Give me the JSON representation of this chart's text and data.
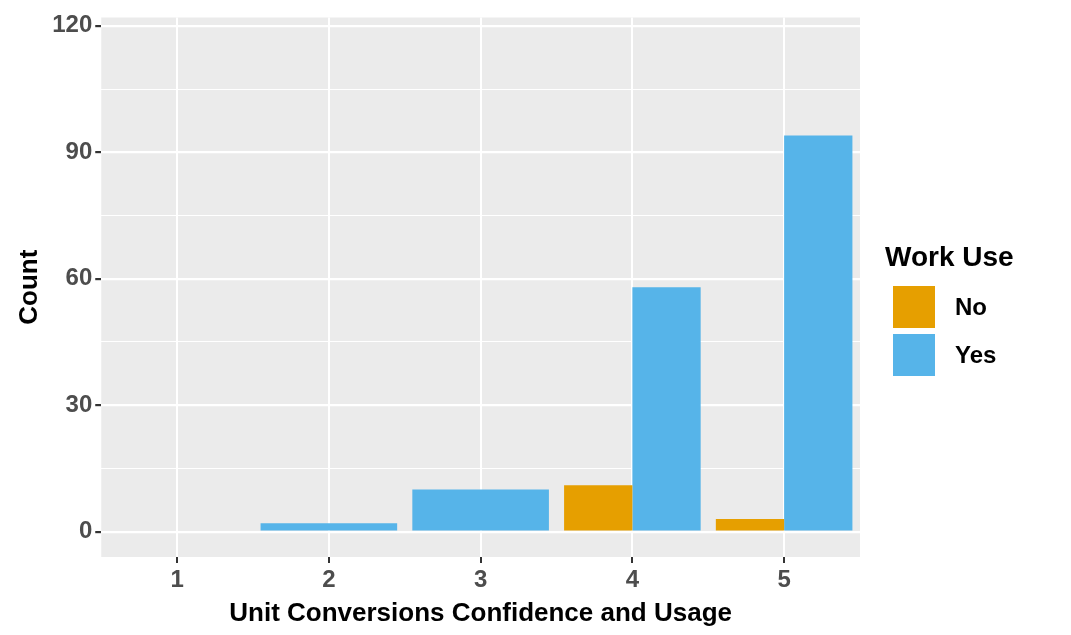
{
  "chart_data": {
    "type": "bar",
    "xlabel": "Unit Conversions Confidence and Usage",
    "ylabel": "Count",
    "legend_title": "Work Use",
    "categories": [
      "1",
      "2",
      "3",
      "4",
      "5"
    ],
    "series": [
      {
        "name": "No",
        "color": "#e69f00",
        "values": [
          null,
          null,
          null,
          11,
          3
        ]
      },
      {
        "name": "Yes",
        "color": "#56b4e9",
        "values": [
          null,
          2,
          10,
          58,
          94
        ]
      }
    ],
    "ylim": [
      -6,
      122
    ],
    "yticks": [
      0,
      {
        "value": 15,
        "label": null
      },
      30,
      {
        "value": 45,
        "label": null
      },
      60,
      {
        "value": 75,
        "label": null
      },
      90,
      {
        "value": 105,
        "label": null
      },
      120
    ],
    "grid": true,
    "legend": "right"
  }
}
